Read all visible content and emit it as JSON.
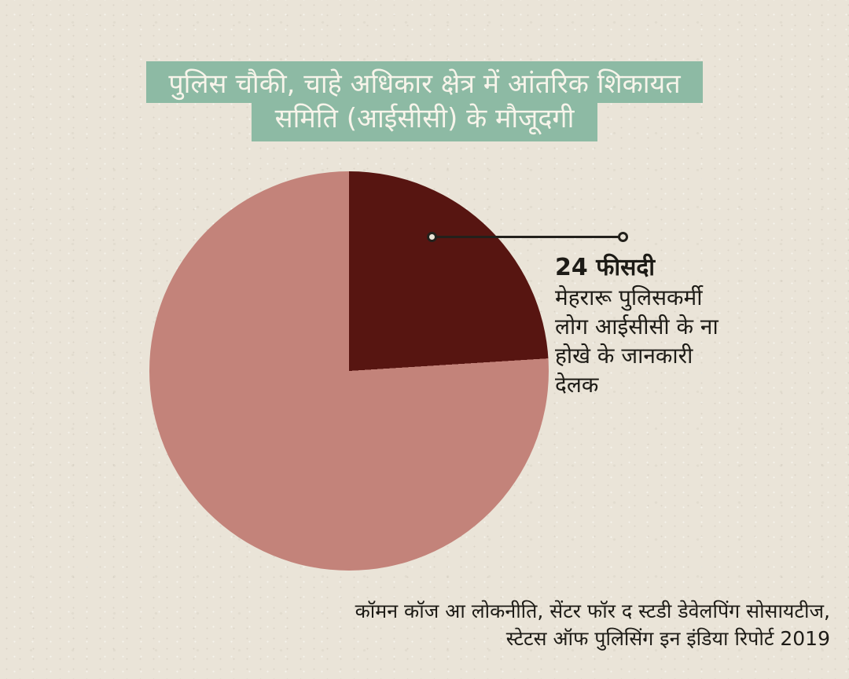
{
  "theme": {
    "paper_color": "#eae4d8",
    "green_color": "#8dbaa4",
    "title_text_color": "#f7f4ea",
    "ink_color": "#1d1b16",
    "slice_dark_color": "#571511",
    "slice_rose_color": "#c3837a"
  },
  "title": {
    "line1": "पुलिस चौकी, चाहे अधिकार क्षेत्र में आंतरिक शिकायत",
    "line2": "समिति (आईसीसी) के मौजूदगी"
  },
  "annotation": {
    "heading": "24 फीसदी",
    "body_lines": [
      "मेहरारू पुलिसकर्मी",
      "लोग आईसीसी के ना",
      "होखे के जानकारी",
      "देलक"
    ]
  },
  "source": {
    "lines": [
      "कॉमन कॉज आ लोकनीति, सेंटर फॉर द स्टडी डेवेलपिंग सोसायटीज,",
      "स्टेटस ऑफ पुलिसिंग इन इंडिया रिपोर्ट 2019"
    ]
  },
  "chart_data": {
    "type": "pie",
    "title": "पुलिस चौकी, चाहे अधिकार क्षेत्र में आंतरिक शिकायत समिति (आईसीसी) के मौजूदगी",
    "slices": [
      {
        "label": "24 फीसदी मेहरारू पुलिसकर्मी लोग आईसीसी के ना होखे के जानकारी देलक",
        "value": 24,
        "color": "#571511"
      },
      {
        "label": "",
        "value": 76,
        "color": "#c3837a"
      }
    ],
    "start_angle_deg": 0,
    "direction": "clockwise",
    "legend_position": "none",
    "annotation_value": "24 फीसदी",
    "source": "कॉमन कॉज आ लोकनीति, सेंटर फॉर द स्टडी डेवेलपिंग सोसायटीज, स्टेटस ऑफ पुलिसिंग इन इंडिया रिपोर्ट 2019"
  }
}
